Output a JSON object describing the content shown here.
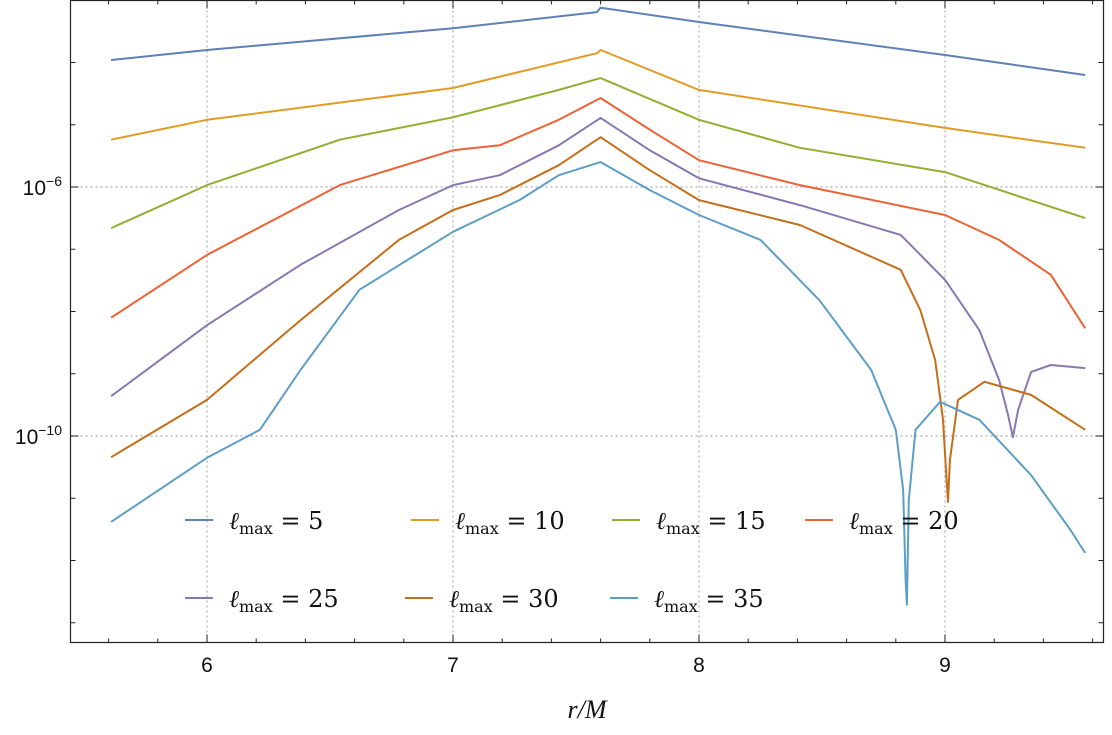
{
  "chart_data": {
    "type": "line",
    "title": "",
    "xlabel": "r/M",
    "ylabel": "",
    "yscale": "log10",
    "xlim": [
      5.44,
      9.64
    ],
    "ylim_log10": [
      -13.36,
      -3.0
    ],
    "grid": true,
    "x_ticks": [
      {
        "value": 6,
        "label": "6"
      },
      {
        "value": 7,
        "label": "7"
      },
      {
        "value": 8,
        "label": "8"
      },
      {
        "value": 9,
        "label": "9"
      }
    ],
    "y_ticks": [
      {
        "value": -6,
        "base": "10",
        "exp": "−6"
      },
      {
        "value": -10,
        "base": "10",
        "exp": "−10"
      }
    ],
    "legend_placement": "bottom",
    "series": [
      {
        "name": "ℓmax = 5",
        "sym": "ℓ",
        "sub": "max",
        "rest": " = 5",
        "color": "#5E81B5",
        "x": [
          5.61,
          6.0,
          7.0,
          7.585,
          7.6,
          8.0,
          9.0,
          9.57
        ],
        "log10_y": [
          -3.96,
          -3.8,
          -3.45,
          -3.19,
          -3.12,
          -3.35,
          -3.88,
          -4.2
        ]
      },
      {
        "name": "ℓmax = 10",
        "sym": "ℓ",
        "sub": "max",
        "rest": " = 10",
        "color": "#E19C24",
        "x": [
          5.61,
          6.0,
          7.0,
          7.585,
          7.6,
          8.0,
          9.0,
          9.57
        ],
        "log10_y": [
          -5.24,
          -4.92,
          -4.41,
          -3.85,
          -3.8,
          -4.44,
          -5.05,
          -5.37
        ]
      },
      {
        "name": "ℓmax = 15",
        "sym": "ℓ",
        "sub": "max",
        "rest": " = 15",
        "color": "#8FB032",
        "x": [
          5.61,
          6.0,
          6.54,
          7.0,
          7.43,
          7.6,
          8.0,
          8.41,
          9.0,
          9.57
        ],
        "log10_y": [
          -6.66,
          -5.97,
          -5.24,
          -4.88,
          -4.44,
          -4.25,
          -4.92,
          -5.37,
          -5.76,
          -6.5
        ]
      },
      {
        "name": "ℓmax = 20",
        "sym": "ℓ",
        "sub": "max",
        "rest": " = 20",
        "color": "#EB6235",
        "x": [
          5.61,
          6.0,
          6.54,
          7.0,
          7.19,
          7.43,
          7.6,
          7.8,
          8.0,
          8.41,
          9.0,
          9.22,
          9.43,
          9.57
        ],
        "log10_y": [
          -8.1,
          -7.09,
          -5.97,
          -5.41,
          -5.33,
          -4.92,
          -4.57,
          -5.08,
          -5.57,
          -5.97,
          -6.45,
          -6.85,
          -7.41,
          -8.27
        ]
      },
      {
        "name": "ℓmax = 25",
        "sym": "ℓ",
        "sub": "max",
        "rest": " = 25",
        "color": "#8778B3",
        "x": [
          5.61,
          6.0,
          6.38,
          6.78,
          7.0,
          7.19,
          7.43,
          7.6,
          7.8,
          8.0,
          8.41,
          8.82,
          9.0,
          9.14,
          9.22,
          9.256,
          9.276,
          9.297,
          9.35,
          9.43,
          9.57
        ],
        "log10_y": [
          -9.36,
          -8.22,
          -7.25,
          -6.37,
          -5.97,
          -5.81,
          -5.33,
          -4.89,
          -5.41,
          -5.86,
          -6.29,
          -6.77,
          -7.49,
          -8.3,
          -9.1,
          -9.66,
          -10.02,
          -9.58,
          -8.97,
          -8.86,
          -8.91
        ]
      },
      {
        "name": "ℓmax = 30",
        "sym": "ℓ",
        "sub": "max",
        "rest": " = 30",
        "color": "#C56E1A",
        "x": [
          5.61,
          6.0,
          6.38,
          6.78,
          7.0,
          7.19,
          7.43,
          7.6,
          7.8,
          8.0,
          8.41,
          8.82,
          8.9,
          8.96,
          8.992,
          9.004,
          9.012,
          9.02,
          9.053,
          9.16,
          9.35,
          9.57
        ],
        "log10_y": [
          -10.34,
          -9.42,
          -8.14,
          -6.85,
          -6.37,
          -6.13,
          -5.65,
          -5.2,
          -5.73,
          -6.21,
          -6.61,
          -7.33,
          -7.98,
          -8.78,
          -9.74,
          -10.55,
          -11.06,
          -10.39,
          -9.42,
          -9.13,
          -9.34,
          -9.9
        ]
      },
      {
        "name": "ℓmax = 35",
        "sym": "ℓ",
        "sub": "max",
        "rest": " = 35",
        "color": "#5D9EC7",
        "x": [
          5.61,
          6.0,
          6.215,
          6.38,
          6.62,
          7.0,
          7.27,
          7.43,
          7.6,
          7.8,
          8.0,
          8.25,
          8.49,
          8.7,
          8.8,
          8.83,
          8.84,
          8.845,
          8.853,
          8.88,
          8.98,
          9.14,
          9.35,
          9.51,
          9.57
        ],
        "log10_y": [
          -11.38,
          -10.35,
          -9.9,
          -8.94,
          -7.65,
          -6.72,
          -6.21,
          -5.81,
          -5.6,
          -6.05,
          -6.45,
          -6.85,
          -7.82,
          -8.94,
          -9.9,
          -10.87,
          -12.31,
          -12.71,
          -11.03,
          -9.9,
          -9.45,
          -9.74,
          -10.63,
          -11.51,
          -11.88
        ]
      }
    ]
  }
}
